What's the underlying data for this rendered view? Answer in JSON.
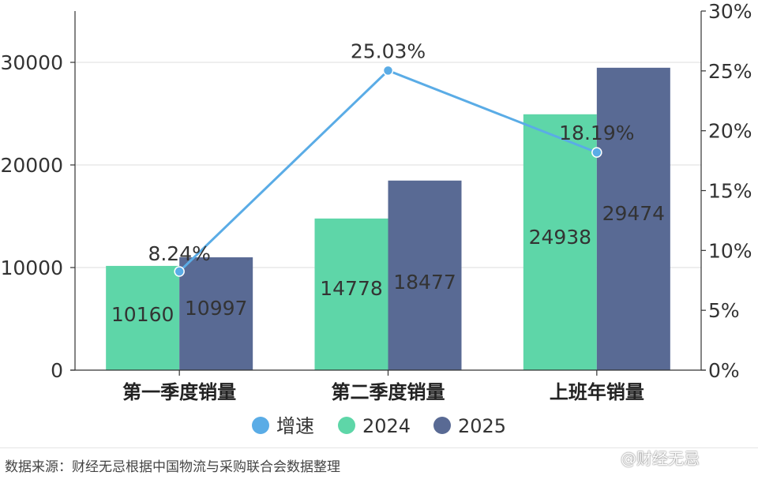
{
  "chart_data": {
    "type": "bar",
    "categories": [
      "第一季度销量",
      "第二季度销量",
      "上班年销量"
    ],
    "series": [
      {
        "name": "2024",
        "values": [
          10160,
          14778,
          24938
        ],
        "color": "#5ed6a8",
        "value_labels": [
          "10160",
          "14778",
          "24938"
        ]
      },
      {
        "name": "2025",
        "values": [
          10997,
          18477,
          29474
        ],
        "color": "#596a94",
        "value_labels": [
          "10997",
          "18477",
          "29474"
        ]
      }
    ],
    "line_series": {
      "name": "增速",
      "values": [
        8.24,
        25.03,
        18.19
      ],
      "labels": [
        "8.24%",
        "25.03%",
        "18.19%"
      ],
      "color": "#5aace6",
      "axis": "right"
    },
    "y_left": {
      "range": [
        0,
        35000
      ],
      "ticks": [
        "0",
        "10000",
        "20000",
        "30000"
      ]
    },
    "y_right": {
      "range": [
        0,
        30
      ],
      "ticks": [
        "0%",
        "5%",
        "10%",
        "15%",
        "20%",
        "25%",
        "30%"
      ]
    },
    "grid": true,
    "legend": {
      "position": "bottom",
      "items": [
        "增速",
        "2024",
        "2025"
      ]
    }
  },
  "source_note": "数据来源：财经无忌根据中国物流与采购联合会数据整理",
  "watermark": "@财经无忌"
}
